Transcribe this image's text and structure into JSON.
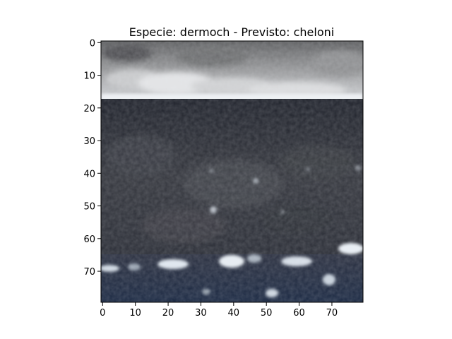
{
  "chart_data": {
    "type": "heatmap",
    "title": "Especie: dermoch - Previsto: cheloni",
    "xlabel": "",
    "ylabel": "",
    "image_size": [
      80,
      80
    ],
    "xlim": [
      -0.5,
      79.5
    ],
    "ylim": [
      79.5,
      -0.5
    ],
    "x_ticks": [
      0,
      10,
      20,
      30,
      40,
      50,
      60,
      70
    ],
    "y_ticks": [
      0,
      10,
      20,
      30,
      40,
      50,
      60,
      70
    ],
    "x_tick_labels": [
      "0",
      "10",
      "20",
      "30",
      "40",
      "50",
      "60",
      "70"
    ],
    "y_tick_labels": [
      "0",
      "10",
      "20",
      "30",
      "40",
      "50",
      "60",
      "70"
    ],
    "grid": false,
    "colors": {
      "sky_top": "#6b6c6e",
      "sky_bright": "#d9dadc",
      "horizon_white": "#eef1f4",
      "sea_dark": "#23262e",
      "sea_mid": "#3a3c42",
      "foam": "#dfe6ee",
      "deep_blue": "#1c2a44"
    },
    "image_regions": [
      {
        "name": "sky",
        "y_range": [
          0,
          17
        ]
      },
      {
        "name": "sea",
        "y_range": [
          17,
          63
        ]
      },
      {
        "name": "foreground-waves",
        "y_range": [
          63,
          80
        ]
      }
    ]
  }
}
